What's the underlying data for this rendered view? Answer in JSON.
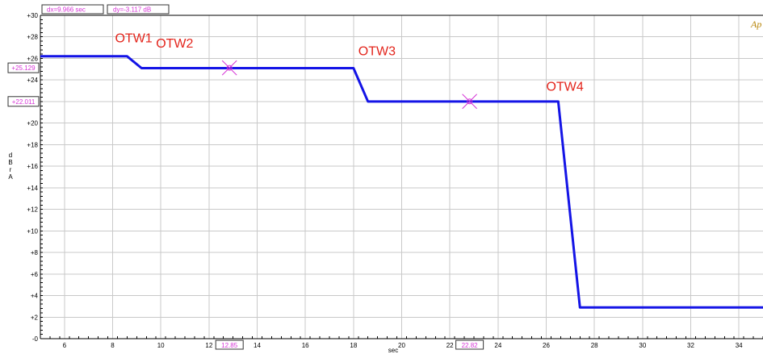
{
  "readout": {
    "dx": "dx=9.966  sec",
    "dy": "dy=-3.117  dB"
  },
  "corner_text": "Ap",
  "chart_data": {
    "type": "line",
    "title": "",
    "xlabel": "sec",
    "ylabel": "dBrA",
    "xlim": [
      5,
      35
    ],
    "ylim": [
      0,
      30
    ],
    "grid": true,
    "x_ticks": [
      6,
      8,
      10,
      12,
      14,
      16,
      18,
      20,
      22,
      24,
      26,
      28,
      30,
      32,
      34
    ],
    "y_ticks": [
      0,
      2,
      4,
      6,
      8,
      10,
      12,
      14,
      16,
      18,
      20,
      22,
      24,
      26,
      28,
      30
    ],
    "x_tick_labels": [
      "6",
      "8",
      "10",
      "12",
      "14",
      "16",
      "18",
      "20",
      "22",
      "24",
      "26",
      "28",
      "30",
      "32",
      "34"
    ],
    "y_tick_labels": [
      "-0",
      "+2",
      "+4",
      "+6",
      "+8",
      "+10",
      "+12",
      "+14",
      "+16",
      "+18",
      "+20",
      "+22",
      "+24",
      "+26",
      "+28",
      "+30"
    ],
    "series": [
      {
        "color": "#1414e6",
        "x": [
          5.0,
          8.6,
          9.2,
          12.8,
          18.0,
          18.6,
          22.8,
          26.5,
          27.4,
          35.0
        ],
        "y": [
          26.2,
          26.2,
          25.1,
          25.1,
          25.1,
          22.0,
          22.0,
          22.0,
          2.9,
          2.9
        ]
      }
    ],
    "cursors": [
      {
        "x": 12.85,
        "y": 25.129,
        "x_label": "12.85",
        "y_label": "+25.129"
      },
      {
        "x": 22.82,
        "y": 22.011,
        "x_label": "22.82",
        "y_label": "+22.011"
      }
    ],
    "annotations": [
      {
        "text": "OTW1",
        "x": 8.1,
        "y": 27.5
      },
      {
        "text": "OTW2",
        "x": 9.8,
        "y": 27.0
      },
      {
        "text": "OTW3",
        "x": 18.2,
        "y": 26.3
      },
      {
        "text": "OTW4",
        "x": 26.0,
        "y": 23.0
      }
    ]
  }
}
